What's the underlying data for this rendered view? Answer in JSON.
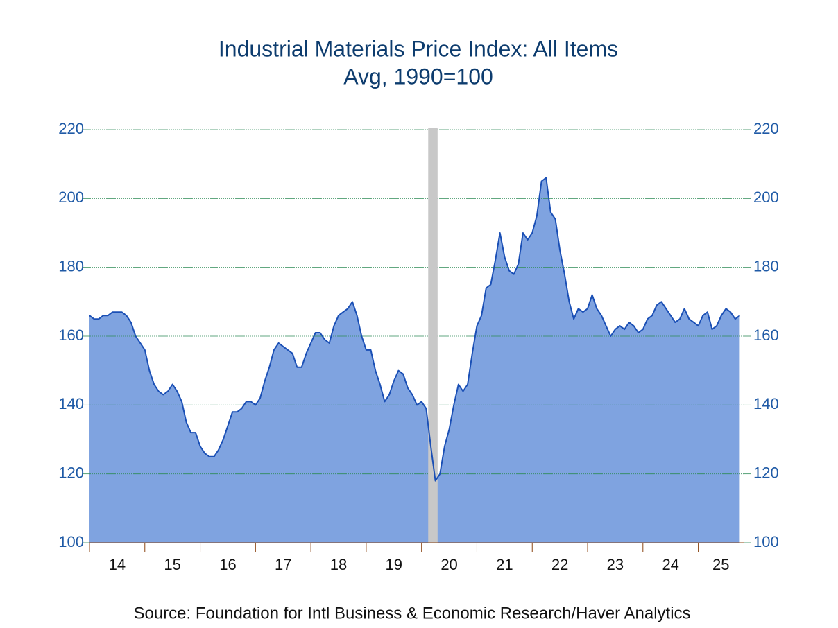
{
  "chart_data": {
    "type": "area",
    "title": "Industrial Materials Price Index: All Items",
    "subtitle": "Avg, 1990=100",
    "source": "Source:  Foundation for Intl Business & Economic Research/Haver Analytics",
    "x": [
      2014,
      2014.083,
      2014.167,
      2014.25,
      2014.333,
      2014.417,
      2014.5,
      2014.583,
      2014.667,
      2014.75,
      2014.833,
      2014.917,
      2015,
      2015.083,
      2015.167,
      2015.25,
      2015.333,
      2015.417,
      2015.5,
      2015.583,
      2015.667,
      2015.75,
      2015.833,
      2015.917,
      2016,
      2016.083,
      2016.167,
      2016.25,
      2016.333,
      2016.417,
      2016.5,
      2016.583,
      2016.667,
      2016.75,
      2016.833,
      2016.917,
      2017,
      2017.083,
      2017.167,
      2017.25,
      2017.333,
      2017.417,
      2017.5,
      2017.583,
      2017.667,
      2017.75,
      2017.833,
      2017.917,
      2018,
      2018.083,
      2018.167,
      2018.25,
      2018.333,
      2018.417,
      2018.5,
      2018.583,
      2018.667,
      2018.75,
      2018.833,
      2018.917,
      2019,
      2019.083,
      2019.167,
      2019.25,
      2019.333,
      2019.417,
      2019.5,
      2019.583,
      2019.667,
      2019.75,
      2019.833,
      2019.917,
      2020,
      2020.083,
      2020.167,
      2020.25,
      2020.333,
      2020.417,
      2020.5,
      2020.583,
      2020.667,
      2020.75,
      2020.833,
      2020.917,
      2021,
      2021.083,
      2021.167,
      2021.25,
      2021.333,
      2021.417,
      2021.5,
      2021.583,
      2021.667,
      2021.75,
      2021.833,
      2021.917,
      2022,
      2022.083,
      2022.167,
      2022.25,
      2022.333,
      2022.417,
      2022.5,
      2022.583,
      2022.667,
      2022.75,
      2022.833,
      2022.917,
      2023,
      2023.083,
      2023.167,
      2023.25,
      2023.333,
      2023.417,
      2023.5,
      2023.583,
      2023.667,
      2023.75,
      2023.833,
      2023.917,
      2024,
      2024.083,
      2024.167,
      2024.25,
      2024.333,
      2024.417,
      2024.5,
      2024.583,
      2024.667,
      2024.75,
      2024.833,
      2024.917,
      2025,
      2025.083,
      2025.167,
      2025.25,
      2025.333,
      2025.417,
      2025.5,
      2025.583,
      2025.667,
      2025.75
    ],
    "series": [
      {
        "color": "#1a4fb5",
        "fill": "#7fa3e0",
        "values": [
          166,
          165,
          165,
          166,
          166,
          167,
          167,
          167,
          166,
          164,
          160,
          158,
          156,
          150,
          146,
          144,
          143,
          144,
          146,
          144,
          141,
          135,
          132,
          132,
          128,
          126,
          125,
          125,
          127,
          130,
          134,
          138,
          138,
          139,
          141,
          141,
          140,
          142,
          147,
          151,
          156,
          158,
          157,
          156,
          155,
          151,
          151,
          155,
          158,
          161,
          161,
          159,
          158,
          163,
          166,
          167,
          168,
          170,
          166,
          160,
          156,
          156,
          150,
          146,
          141,
          143,
          147,
          150,
          149,
          145,
          143,
          140,
          141,
          139,
          128,
          118,
          120,
          128,
          133,
          140,
          146,
          144,
          146,
          155,
          163,
          166,
          174,
          175,
          182,
          190,
          183,
          179,
          178,
          181,
          190,
          188,
          190,
          195,
          205,
          206,
          196,
          194,
          185,
          178,
          170,
          165,
          168,
          167,
          168,
          172,
          168,
          166,
          163,
          160,
          162,
          163,
          162,
          164,
          163,
          161,
          162,
          165,
          166,
          169,
          170,
          168,
          166,
          164,
          165,
          168,
          165,
          164,
          163,
          166,
          167,
          162,
          163,
          166,
          168,
          167,
          165,
          166
        ]
      }
    ],
    "recession": [
      2020.12,
      2020.29
    ],
    "recession_color": "#c8c8c8",
    "xlim": [
      2014,
      2025.82
    ],
    "xticks": [
      {
        "value": 2014,
        "label": "14"
      },
      {
        "value": 2015,
        "label": "15"
      },
      {
        "value": 2016,
        "label": "16"
      },
      {
        "value": 2017,
        "label": "17"
      },
      {
        "value": 2018,
        "label": "18"
      },
      {
        "value": 2019,
        "label": "19"
      },
      {
        "value": 2020,
        "label": "20"
      },
      {
        "value": 2021,
        "label": "21"
      },
      {
        "value": 2022,
        "label": "22"
      },
      {
        "value": 2023,
        "label": "23"
      },
      {
        "value": 2024,
        "label": "24"
      },
      {
        "value": 2025,
        "label": "25"
      }
    ],
    "ylim": [
      100,
      220
    ],
    "yticks": [
      100,
      120,
      140,
      160,
      180,
      200,
      220
    ],
    "grid": true,
    "grid_color": "#2e8b57"
  }
}
